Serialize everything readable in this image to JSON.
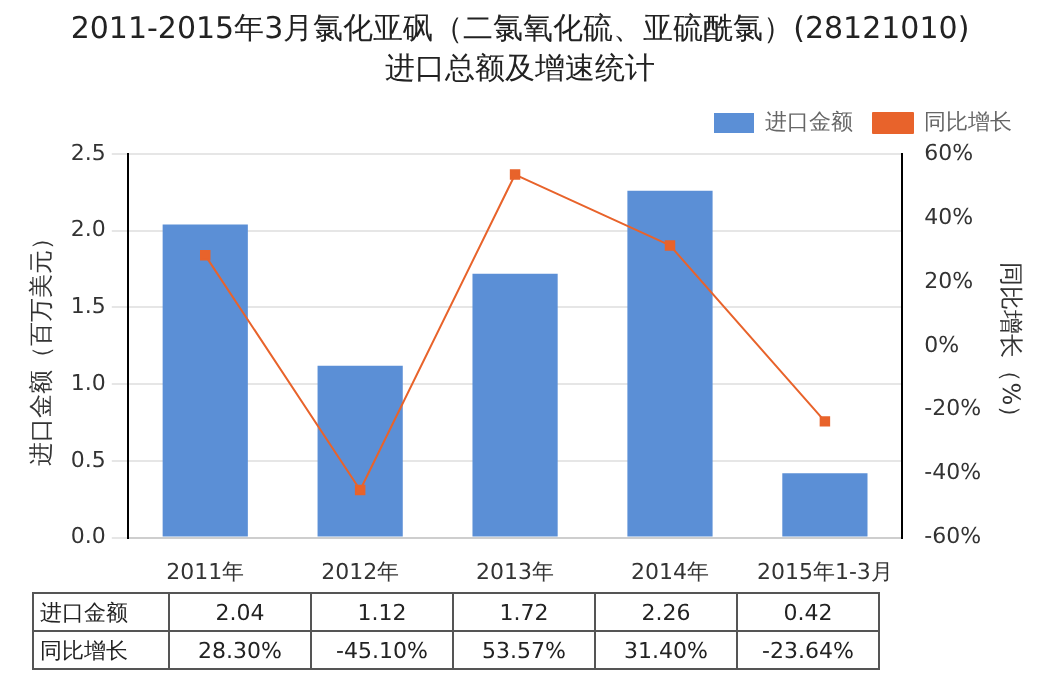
{
  "chart_data": {
    "type": "bar",
    "title": "2011-2015年3月氯化亚砜（二氯氧化硫、亚硫酰氯）(28121010)进口总额及增速统计",
    "ylabel": "进口金额（百万美元）",
    "y2label": "同比增长（%）",
    "categories": [
      "2011年",
      "2012年",
      "2013年",
      "2014年",
      "2015年1-3月"
    ],
    "series": [
      {
        "name": "进口金额",
        "color": "#5b8fd6",
        "values": [
          2.04,
          1.12,
          1.72,
          2.26,
          0.42
        ],
        "value_labels": [
          "2.04",
          "1.12",
          "1.72",
          "2.26",
          "0.42"
        ]
      },
      {
        "name": "同比增长",
        "type": "line",
        "axis": "y2",
        "color": "#e8632b",
        "values": [
          28.3,
          -45.1,
          53.57,
          31.4,
          -23.64
        ],
        "value_labels": [
          "28.30%",
          "-45.10%",
          "53.57%",
          "31.40%",
          "-23.64%"
        ]
      }
    ],
    "ylim": [
      0,
      2.5
    ],
    "yticks": [
      {
        "value": 0,
        "label": "0.0"
      },
      {
        "value": 0.5,
        "label": "0.5"
      },
      {
        "value": 1,
        "label": "1.0"
      },
      {
        "value": 1.5,
        "label": "1.5"
      },
      {
        "value": 2,
        "label": "2.0"
      },
      {
        "value": 2.5,
        "label": "2.5"
      }
    ],
    "y2lim": [
      -60,
      60
    ],
    "y2ticks": [
      {
        "value": -60,
        "label": "-60%"
      },
      {
        "value": -40,
        "label": "-40%"
      },
      {
        "value": -20,
        "label": "-20%"
      },
      {
        "value": 0,
        "label": "0%"
      },
      {
        "value": 20,
        "label": "20%"
      },
      {
        "value": 40,
        "label": "40%"
      },
      {
        "value": 60,
        "label": "60%"
      }
    ],
    "grid": "y",
    "legend": "top right",
    "marker": "square",
    "line_style": "solid"
  }
}
